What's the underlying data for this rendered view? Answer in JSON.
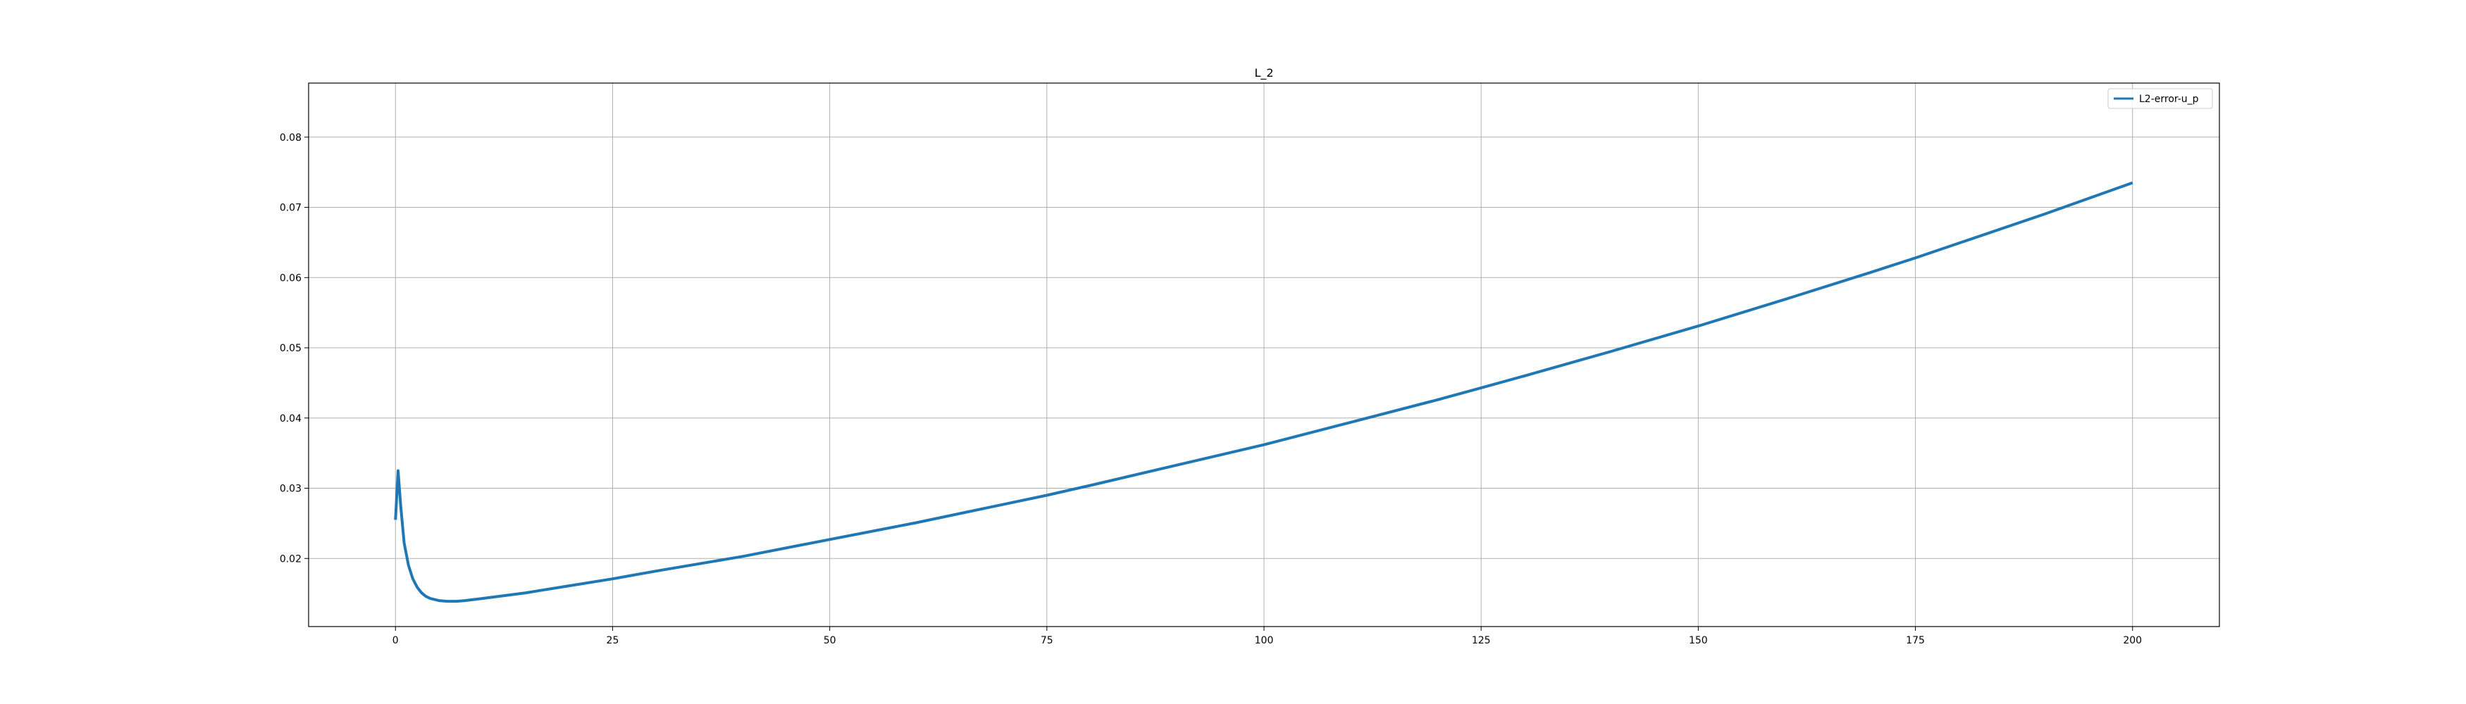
{
  "chart_data": {
    "type": "line",
    "title": "L_2",
    "xlabel": "",
    "ylabel": "",
    "xlim": [
      -10,
      210
    ],
    "ylim": [
      0.0103,
      0.0877
    ],
    "xticks": [
      0,
      25,
      50,
      75,
      100,
      125,
      150,
      175,
      200
    ],
    "yticks": [
      0.02,
      0.03,
      0.04,
      0.05,
      0.06,
      0.07,
      0.08
    ],
    "grid": true,
    "legend_position": "top-right",
    "series": [
      {
        "name": "L2-error-u_p",
        "color": "#1f77b4",
        "x": [
          0,
          0.3,
          0.6,
          1,
          1.5,
          2,
          2.5,
          3,
          3.5,
          4,
          5,
          6,
          7,
          8,
          10,
          15,
          20,
          25,
          30,
          40,
          50,
          60,
          70,
          75,
          80,
          90,
          100,
          110,
          120,
          125,
          130,
          140,
          150,
          160,
          170,
          175,
          180,
          190,
          200
        ],
        "y": [
          0.0255,
          0.0325,
          0.0275,
          0.0222,
          0.019,
          0.0171,
          0.0159,
          0.0151,
          0.0146,
          0.0143,
          0.014,
          0.0139,
          0.0139,
          0.014,
          0.0143,
          0.0151,
          0.0161,
          0.0171,
          0.0182,
          0.0203,
          0.0227,
          0.0251,
          0.0277,
          0.029,
          0.0304,
          0.0333,
          0.0362,
          0.0394,
          0.0426,
          0.0443,
          0.046,
          0.0495,
          0.0531,
          0.0569,
          0.0608,
          0.0628,
          0.0649,
          0.0691,
          0.0735
        ]
      }
    ]
  }
}
